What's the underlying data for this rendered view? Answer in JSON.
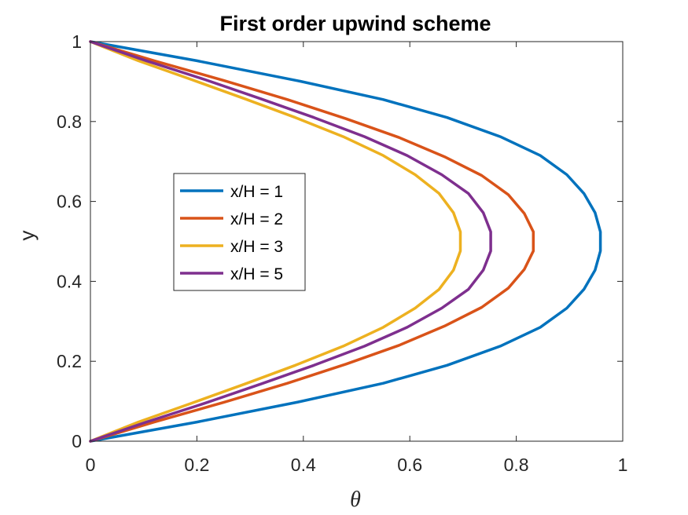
{
  "chart_data": {
    "type": "line",
    "title": "First order upwind scheme",
    "xlabel": "θ",
    "ylabel": "y",
    "xlim": [
      0,
      1
    ],
    "ylim": [
      0,
      1
    ],
    "xticks": [
      "0",
      "0.2",
      "0.4",
      "0.6",
      "0.8",
      "1"
    ],
    "yticks": [
      "0",
      "0.2",
      "0.4",
      "0.6",
      "0.8",
      "1"
    ],
    "grid": false,
    "legend_position": "center-left",
    "series": [
      {
        "name": "x/H = 1",
        "color": "#0072BD",
        "points": [
          [
            0,
            0
          ],
          [
            0.2,
            0.048
          ],
          [
            0.39,
            0.098
          ],
          [
            0.55,
            0.145
          ],
          [
            0.67,
            0.19
          ],
          [
            0.77,
            0.238
          ],
          [
            0.845,
            0.285
          ],
          [
            0.895,
            0.333
          ],
          [
            0.927,
            0.38
          ],
          [
            0.948,
            0.428
          ],
          [
            0.958,
            0.476
          ],
          [
            0.958,
            0.524
          ],
          [
            0.948,
            0.572
          ],
          [
            0.927,
            0.62
          ],
          [
            0.895,
            0.667
          ],
          [
            0.845,
            0.715
          ],
          [
            0.77,
            0.762
          ],
          [
            0.67,
            0.81
          ],
          [
            0.55,
            0.855
          ],
          [
            0.39,
            0.902
          ],
          [
            0.2,
            0.952
          ],
          [
            0,
            1
          ]
        ]
      },
      {
        "name": "x/H = 2",
        "color": "#D95319",
        "points": [
          [
            0,
            0
          ],
          [
            0.12,
            0.048
          ],
          [
            0.25,
            0.097
          ],
          [
            0.37,
            0.145
          ],
          [
            0.48,
            0.193
          ],
          [
            0.58,
            0.24
          ],
          [
            0.665,
            0.288
          ],
          [
            0.735,
            0.335
          ],
          [
            0.785,
            0.383
          ],
          [
            0.815,
            0.43
          ],
          [
            0.832,
            0.476
          ],
          [
            0.832,
            0.524
          ],
          [
            0.815,
            0.57
          ],
          [
            0.785,
            0.617
          ],
          [
            0.735,
            0.665
          ],
          [
            0.665,
            0.712
          ],
          [
            0.58,
            0.76
          ],
          [
            0.48,
            0.807
          ],
          [
            0.37,
            0.855
          ],
          [
            0.25,
            0.903
          ],
          [
            0.12,
            0.952
          ],
          [
            0,
            1
          ]
        ]
      },
      {
        "name": "x/H = 3",
        "color": "#EDB120",
        "points": [
          [
            0,
            0
          ],
          [
            0.09,
            0.048
          ],
          [
            0.19,
            0.095
          ],
          [
            0.29,
            0.143
          ],
          [
            0.385,
            0.19
          ],
          [
            0.475,
            0.238
          ],
          [
            0.55,
            0.285
          ],
          [
            0.61,
            0.333
          ],
          [
            0.655,
            0.38
          ],
          [
            0.682,
            0.428
          ],
          [
            0.695,
            0.476
          ],
          [
            0.695,
            0.524
          ],
          [
            0.682,
            0.572
          ],
          [
            0.655,
            0.62
          ],
          [
            0.61,
            0.667
          ],
          [
            0.55,
            0.715
          ],
          [
            0.475,
            0.762
          ],
          [
            0.385,
            0.81
          ],
          [
            0.29,
            0.857
          ],
          [
            0.19,
            0.905
          ],
          [
            0.09,
            0.952
          ],
          [
            0,
            1
          ]
        ]
      },
      {
        "name": "x/H = 5",
        "color": "#7E2F8E",
        "points": [
          [
            0,
            0
          ],
          [
            0.105,
            0.048
          ],
          [
            0.215,
            0.095
          ],
          [
            0.32,
            0.143
          ],
          [
            0.42,
            0.19
          ],
          [
            0.515,
            0.238
          ],
          [
            0.595,
            0.285
          ],
          [
            0.66,
            0.333
          ],
          [
            0.71,
            0.38
          ],
          [
            0.738,
            0.428
          ],
          [
            0.752,
            0.476
          ],
          [
            0.752,
            0.524
          ],
          [
            0.738,
            0.572
          ],
          [
            0.71,
            0.62
          ],
          [
            0.66,
            0.667
          ],
          [
            0.595,
            0.715
          ],
          [
            0.515,
            0.762
          ],
          [
            0.42,
            0.81
          ],
          [
            0.32,
            0.857
          ],
          [
            0.215,
            0.905
          ],
          [
            0.105,
            0.952
          ],
          [
            0,
            1
          ]
        ]
      }
    ]
  }
}
